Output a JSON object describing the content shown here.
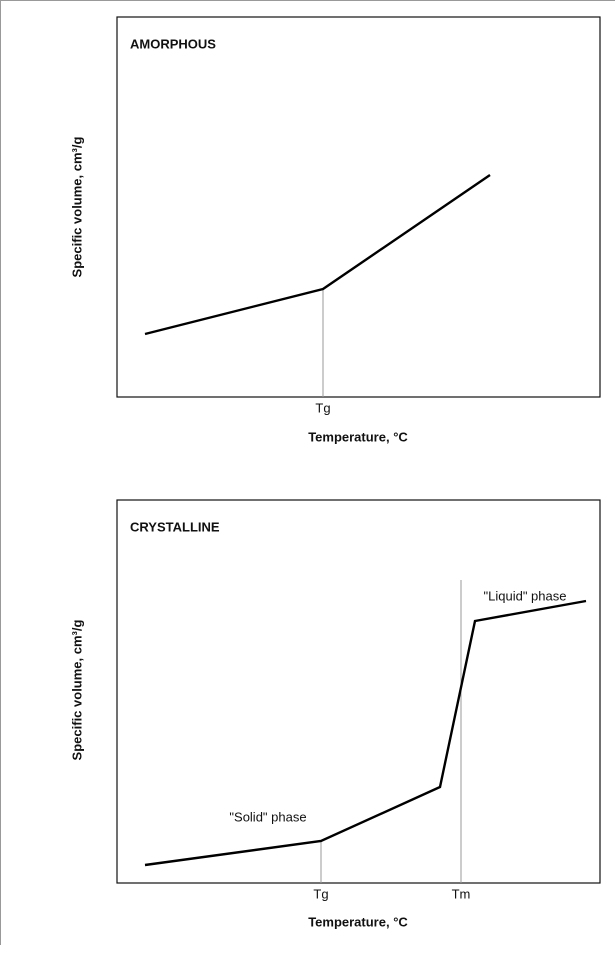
{
  "panels": [
    {
      "title": "AMORPHOUS",
      "y_label": "Specific volume, cm³/g",
      "x_label": "Temperature, °C",
      "tick_labels": [
        "Tg"
      ]
    },
    {
      "title": "CRYSTALLINE",
      "y_label": "Specific volume, cm³/g",
      "x_label": "Temperature, °C",
      "tick_labels": [
        "Tg",
        "Tm"
      ],
      "annotations": [
        "\"Solid\" phase",
        "\"Liquid\" phase"
      ]
    }
  ]
}
